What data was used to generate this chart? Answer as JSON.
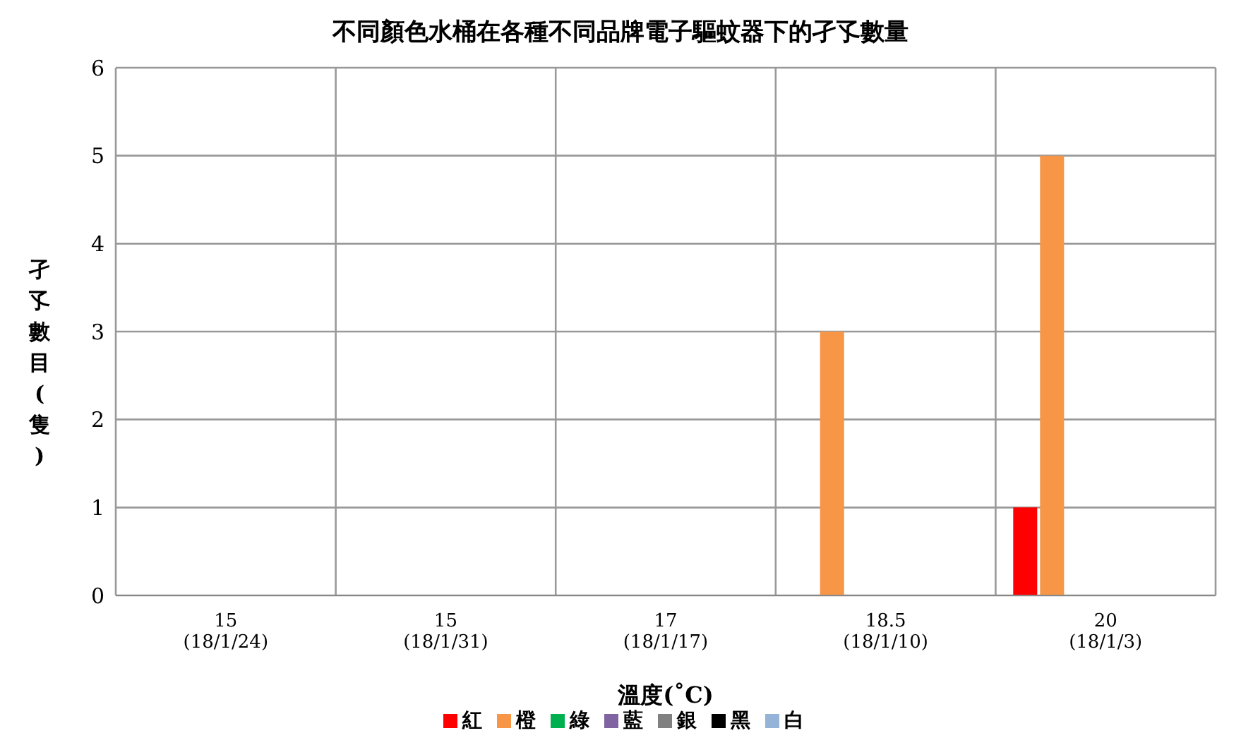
{
  "chart_data": {
    "type": "bar",
    "title": "不同顏色水桶在各種不同品牌電子驅蚊器下的孑孓數量",
    "xlabel": "溫度(˚C)",
    "ylabel": "孑孓數目(隻)",
    "categories": [
      "15\n(18/1/24)",
      "15\n(18/1/31)",
      "17\n(18/1/17)",
      "18.5\n(18/1/10)",
      "20\n(18/1/3)"
    ],
    "series": [
      {
        "name": "紅",
        "color": "#ff0000",
        "values": [
          0,
          0,
          0,
          0,
          1
        ]
      },
      {
        "name": "橙",
        "color": "#f79646",
        "values": [
          0,
          0,
          0,
          3,
          5
        ]
      },
      {
        "name": "綠",
        "color": "#00b050",
        "values": [
          0,
          0,
          0,
          0,
          0
        ]
      },
      {
        "name": "藍",
        "color": "#8064a2",
        "values": [
          0,
          0,
          0,
          0,
          0
        ]
      },
      {
        "name": "銀",
        "color": "#808080",
        "values": [
          0,
          0,
          0,
          0,
          0
        ]
      },
      {
        "name": "黑",
        "color": "#000000",
        "values": [
          0,
          0,
          0,
          0,
          0
        ]
      },
      {
        "name": "白",
        "color": "#95b3d7",
        "values": [
          0,
          0,
          0,
          0,
          0
        ]
      }
    ],
    "ylim": [
      0,
      6
    ],
    "yticks": [
      0,
      1,
      2,
      3,
      4,
      5,
      6
    ],
    "grid": true,
    "legend": "bottom"
  }
}
